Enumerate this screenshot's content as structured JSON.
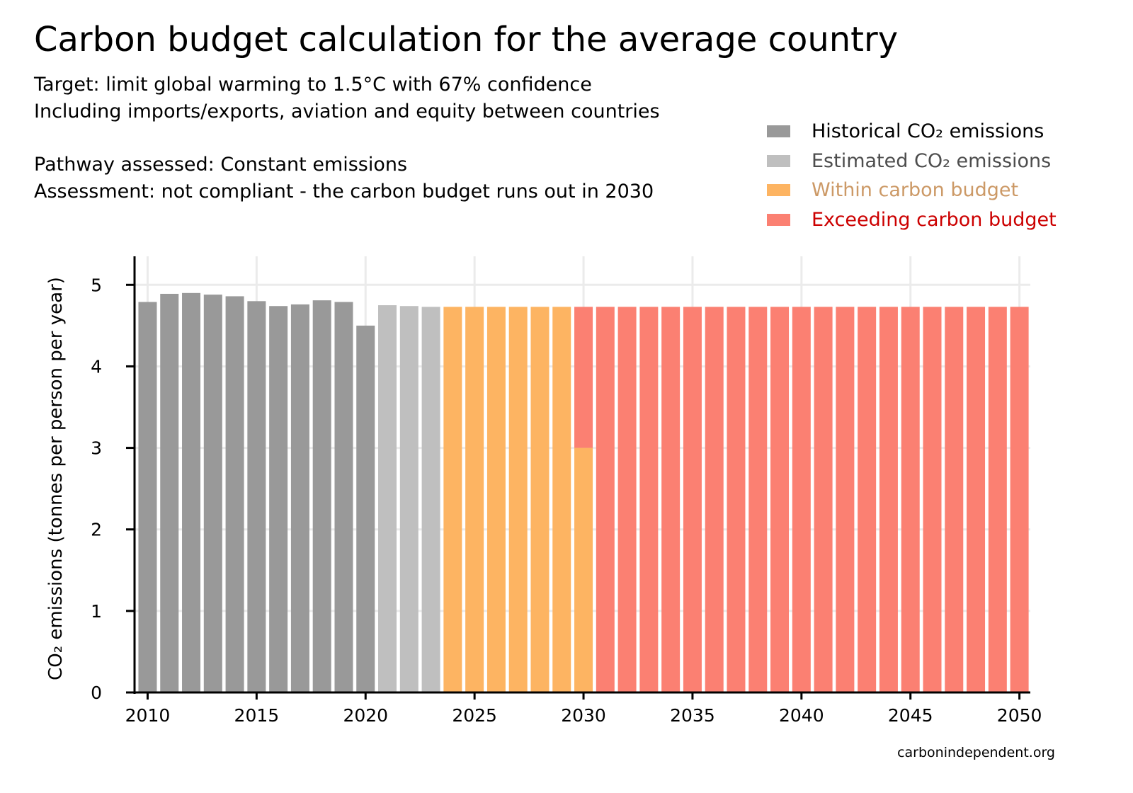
{
  "chart_data": {
    "type": "bar",
    "title": "Carbon budget calculation for the average country",
    "subtitle_lines": [
      "Target: limit global warming to 1.5°C with 67% confidence",
      "Including imports/exports, aviation and equity between countries",
      "",
      "Pathway assessed: Constant emissions",
      "Assessment: not compliant - the carbon budget runs out in 2030"
    ],
    "ylabel": "CO₂ emissions (tonnes per person per year)",
    "xlabel": "",
    "ylim": [
      0,
      5.35
    ],
    "xlim": [
      2009.4,
      2050.5
    ],
    "yticks": [
      0,
      1,
      2,
      3,
      4,
      5
    ],
    "xticks": [
      2010,
      2015,
      2020,
      2025,
      2030,
      2035,
      2040,
      2045,
      2050
    ],
    "grid": true,
    "legend_position": "top-right",
    "x": [
      2010,
      2011,
      2012,
      2013,
      2014,
      2015,
      2016,
      2017,
      2018,
      2019,
      2020,
      2021,
      2022,
      2023,
      2024,
      2025,
      2026,
      2027,
      2028,
      2029,
      2030,
      2031,
      2032,
      2033,
      2034,
      2035,
      2036,
      2037,
      2038,
      2039,
      2040,
      2041,
      2042,
      2043,
      2044,
      2045,
      2046,
      2047,
      2048,
      2049,
      2050
    ],
    "series": [
      {
        "name": "Historical CO₂ emissions",
        "color": "#999999",
        "label_color": "#000000",
        "values": [
          4.79,
          4.89,
          4.9,
          4.88,
          4.86,
          4.8,
          4.74,
          4.76,
          4.81,
          4.79,
          4.5,
          null,
          null,
          null,
          null,
          null,
          null,
          null,
          null,
          null,
          null,
          null,
          null,
          null,
          null,
          null,
          null,
          null,
          null,
          null,
          null,
          null,
          null,
          null,
          null,
          null,
          null,
          null,
          null,
          null,
          null
        ]
      },
      {
        "name": "Estimated CO₂ emissions",
        "color": "#bfbfbf",
        "label_color": "#4d4d4d",
        "values": [
          null,
          null,
          null,
          null,
          null,
          null,
          null,
          null,
          null,
          null,
          null,
          4.75,
          4.74,
          4.73,
          null,
          null,
          null,
          null,
          null,
          null,
          null,
          null,
          null,
          null,
          null,
          null,
          null,
          null,
          null,
          null,
          null,
          null,
          null,
          null,
          null,
          null,
          null,
          null,
          null,
          null,
          null
        ]
      },
      {
        "name": "Within carbon budget",
        "color": "#fdb462",
        "label_color": "#cc9966",
        "values": [
          null,
          null,
          null,
          null,
          null,
          null,
          null,
          null,
          null,
          null,
          null,
          null,
          null,
          null,
          4.73,
          4.73,
          4.73,
          4.73,
          4.73,
          4.73,
          3.0,
          null,
          null,
          null,
          null,
          null,
          null,
          null,
          null,
          null,
          null,
          null,
          null,
          null,
          null,
          null,
          null,
          null,
          null,
          null,
          null
        ]
      },
      {
        "name": "Exceeding carbon budget",
        "color": "#fb8072",
        "label_color": "#cc0000",
        "values": [
          null,
          null,
          null,
          null,
          null,
          null,
          null,
          null,
          null,
          null,
          null,
          null,
          null,
          null,
          null,
          null,
          null,
          null,
          null,
          null,
          1.73,
          4.73,
          4.73,
          4.73,
          4.73,
          4.73,
          4.73,
          4.73,
          4.73,
          4.73,
          4.73,
          4.73,
          4.73,
          4.73,
          4.73,
          4.73,
          4.73,
          4.73,
          4.73,
          4.73,
          4.73
        ]
      }
    ],
    "stacked": true,
    "credit": "carbonindependent.org"
  }
}
